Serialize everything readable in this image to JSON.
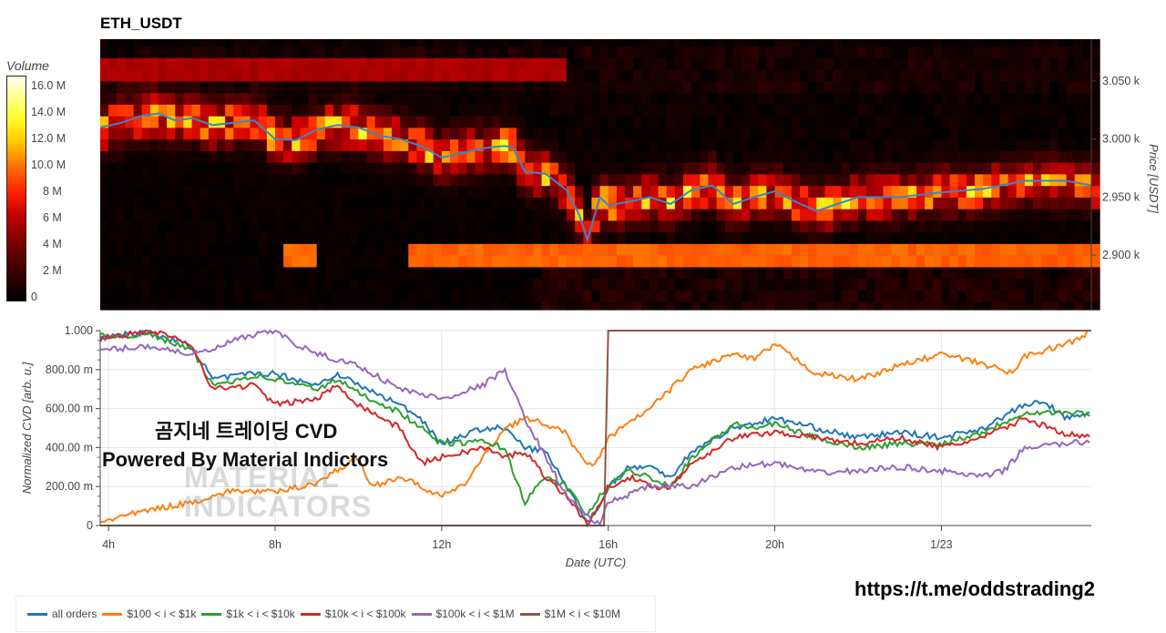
{
  "title": "ETH_USDT",
  "colorbar": {
    "title": "Volume",
    "ticks": [
      [
        "16.0 M",
        16
      ],
      [
        "14.0 M",
        14
      ],
      [
        "12.0 M",
        12
      ],
      [
        "10.0 M",
        10
      ],
      [
        "8 M",
        8
      ],
      [
        "6 M",
        6
      ],
      [
        "4 M",
        4
      ],
      [
        "2 M",
        2
      ],
      [
        "0",
        0
      ]
    ],
    "range": [
      0,
      16.5
    ]
  },
  "chart_data": [
    {
      "type": "heatmap",
      "title": "ETH_USDT",
      "ylabel": "Price [USDT]",
      "yticks": [
        [
          "3.050 k",
          3050
        ],
        [
          "3.000 k",
          3000
        ],
        [
          "2.950 k",
          2950
        ],
        [
          "2.900 k",
          2900
        ]
      ],
      "ylim": [
        2853,
        3086
      ],
      "xlim": [
        3.8,
        27.6
      ],
      "colorscale": "hot",
      "price_line_color": "#3a86c8",
      "price": [
        [
          3.8,
          3010
        ],
        [
          4.3,
          3014
        ],
        [
          4.8,
          3020
        ],
        [
          5.2,
          3022
        ],
        [
          5.6,
          3016
        ],
        [
          6,
          3018
        ],
        [
          6.5,
          3012
        ],
        [
          7,
          3014
        ],
        [
          7.5,
          3016
        ],
        [
          8,
          3000
        ],
        [
          8.5,
          2999
        ],
        [
          9,
          3008
        ],
        [
          9.5,
          3012
        ],
        [
          10,
          3010
        ],
        [
          10.5,
          3003
        ],
        [
          11,
          3000
        ],
        [
          11.5,
          2994
        ],
        [
          12,
          2984
        ],
        [
          12.5,
          2988
        ],
        [
          13,
          2992
        ],
        [
          13.5,
          2994
        ],
        [
          13.7,
          2993
        ],
        [
          14,
          2972
        ],
        [
          14.5,
          2970
        ],
        [
          15,
          2956
        ],
        [
          15.3,
          2935
        ],
        [
          15.5,
          2913
        ],
        [
          15.8,
          2950
        ],
        [
          16,
          2943
        ],
        [
          16.5,
          2946
        ],
        [
          17,
          2950
        ],
        [
          17.5,
          2944
        ],
        [
          18,
          2956
        ],
        [
          18.5,
          2960
        ],
        [
          19,
          2944
        ],
        [
          19.5,
          2950
        ],
        [
          20,
          2955
        ],
        [
          20.5,
          2946
        ],
        [
          21,
          2938
        ],
        [
          21.5,
          2944
        ],
        [
          22,
          2950
        ],
        [
          23,
          2950
        ],
        [
          24,
          2954
        ],
        [
          25,
          2957
        ],
        [
          26,
          2964
        ],
        [
          27,
          2964
        ],
        [
          27.6,
          2960
        ]
      ],
      "walls": [
        {
          "price": 3060,
          "from": 3.8,
          "to": 14.8,
          "volume": 5.5
        },
        {
          "price": 2900,
          "from": 8.1,
          "to": 8.9,
          "volume": 9.5
        },
        {
          "price": 2900,
          "from": 11.0,
          "to": 27.6,
          "volume": 9.5
        }
      ]
    },
    {
      "type": "line",
      "xlabel": "Date (UTC)",
      "ylabel": "Normalized CVD [arb. u.]",
      "ylim": [
        0,
        1
      ],
      "xlim": [
        3.8,
        27.6
      ],
      "xticks": [
        [
          "4h",
          4
        ],
        [
          "8h",
          8
        ],
        [
          "12h",
          12
        ],
        [
          "16h",
          16
        ],
        [
          "20h",
          20
        ],
        [
          "1/23",
          24
        ]
      ],
      "yticks": [
        [
          "1.000",
          1
        ],
        [
          "800.00 m",
          0.8
        ],
        [
          "600.00 m",
          0.6
        ],
        [
          "400.00 m",
          0.4
        ],
        [
          "200.00 m",
          0.2
        ],
        [
          "0",
          0
        ]
      ],
      "grid": true,
      "legend": "bottom",
      "series": [
        {
          "name": "all orders",
          "color": "#1f77b4",
          "points": [
            [
              3.8,
              0.97
            ],
            [
              5,
              0.99
            ],
            [
              6,
              0.92
            ],
            [
              6.5,
              0.75
            ],
            [
              7.5,
              0.78
            ],
            [
              8,
              0.78
            ],
            [
              9,
              0.72
            ],
            [
              9.5,
              0.78
            ],
            [
              10,
              0.72
            ],
            [
              11,
              0.62
            ],
            [
              11.5,
              0.55
            ],
            [
              12,
              0.42
            ],
            [
              13,
              0.5
            ],
            [
              13.5,
              0.5
            ],
            [
              14,
              0.4
            ],
            [
              14.5,
              0.38
            ],
            [
              15,
              0.2
            ],
            [
              15.5,
              0.02
            ],
            [
              15.8,
              0.1
            ],
            [
              16,
              0.2
            ],
            [
              16.5,
              0.3
            ],
            [
              17,
              0.3
            ],
            [
              17.5,
              0.25
            ],
            [
              18,
              0.38
            ],
            [
              19,
              0.5
            ],
            [
              20,
              0.55
            ],
            [
              21,
              0.5
            ],
            [
              22,
              0.45
            ],
            [
              23,
              0.48
            ],
            [
              24,
              0.45
            ],
            [
              25,
              0.5
            ],
            [
              26,
              0.62
            ],
            [
              26.5,
              0.63
            ],
            [
              27,
              0.55
            ],
            [
              27.6,
              0.57
            ]
          ]
        },
        {
          "name": "$100 < i < $1k",
          "color": "#ff7f0e",
          "points": [
            [
              3.8,
              0.02
            ],
            [
              5,
              0.08
            ],
            [
              6,
              0.12
            ],
            [
              7,
              0.18
            ],
            [
              8,
              0.17
            ],
            [
              9,
              0.22
            ],
            [
              10,
              0.35
            ],
            [
              10.3,
              0.2
            ],
            [
              11,
              0.25
            ],
            [
              11.5,
              0.2
            ],
            [
              12,
              0.15
            ],
            [
              12.5,
              0.2
            ],
            [
              13,
              0.35
            ],
            [
              13.5,
              0.5
            ],
            [
              14,
              0.55
            ],
            [
              14.5,
              0.52
            ],
            [
              15,
              0.47
            ],
            [
              15.5,
              0.3
            ],
            [
              15.8,
              0.35
            ],
            [
              16,
              0.45
            ],
            [
              17,
              0.6
            ],
            [
              18,
              0.8
            ],
            [
              19,
              0.88
            ],
            [
              19.5,
              0.85
            ],
            [
              20,
              0.93
            ],
            [
              21,
              0.78
            ],
            [
              22,
              0.75
            ],
            [
              23,
              0.82
            ],
            [
              24,
              0.88
            ],
            [
              25,
              0.83
            ],
            [
              25.7,
              0.78
            ],
            [
              26,
              0.87
            ],
            [
              27,
              0.93
            ],
            [
              27.6,
              1.0
            ]
          ]
        },
        {
          "name": "$1k < i < $10k",
          "color": "#2ca02c",
          "points": [
            [
              3.8,
              0.97
            ],
            [
              5,
              0.98
            ],
            [
              6,
              0.9
            ],
            [
              6.5,
              0.72
            ],
            [
              7.5,
              0.77
            ],
            [
              8,
              0.75
            ],
            [
              9,
              0.7
            ],
            [
              9.5,
              0.75
            ],
            [
              10,
              0.68
            ],
            [
              11,
              0.58
            ],
            [
              12,
              0.42
            ],
            [
              13,
              0.43
            ],
            [
              13.5,
              0.4
            ],
            [
              14,
              0.12
            ],
            [
              14.5,
              0.25
            ],
            [
              15,
              0.2
            ],
            [
              15.5,
              0.05
            ],
            [
              15.8,
              0.15
            ],
            [
              16,
              0.2
            ],
            [
              16.5,
              0.28
            ],
            [
              17,
              0.25
            ],
            [
              17.5,
              0.2
            ],
            [
              18,
              0.35
            ],
            [
              19,
              0.52
            ],
            [
              19.5,
              0.5
            ],
            [
              20,
              0.52
            ],
            [
              21,
              0.45
            ],
            [
              22,
              0.4
            ],
            [
              23,
              0.42
            ],
            [
              24,
              0.42
            ],
            [
              25,
              0.48
            ],
            [
              26,
              0.58
            ],
            [
              27,
              0.58
            ],
            [
              27.6,
              0.57
            ]
          ]
        },
        {
          "name": "$10k < i < $100k",
          "color": "#d62728",
          "points": [
            [
              3.8,
              0.96
            ],
            [
              5,
              1.0
            ],
            [
              6,
              0.93
            ],
            [
              6.5,
              0.7
            ],
            [
              7.5,
              0.72
            ],
            [
              8,
              0.62
            ],
            [
              9,
              0.65
            ],
            [
              9.5,
              0.72
            ],
            [
              10,
              0.62
            ],
            [
              11,
              0.5
            ],
            [
              11.5,
              0.32
            ],
            [
              12,
              0.35
            ],
            [
              13,
              0.4
            ],
            [
              13.5,
              0.35
            ],
            [
              14,
              0.38
            ],
            [
              14.5,
              0.25
            ],
            [
              15,
              0.15
            ],
            [
              15.5,
              0.01
            ],
            [
              15.8,
              0.1
            ],
            [
              16,
              0.2
            ],
            [
              16.5,
              0.25
            ],
            [
              17,
              0.2
            ],
            [
              17.5,
              0.2
            ],
            [
              18,
              0.32
            ],
            [
              19,
              0.45
            ],
            [
              20,
              0.48
            ],
            [
              21,
              0.45
            ],
            [
              22,
              0.42
            ],
            [
              23,
              0.45
            ],
            [
              24,
              0.4
            ],
            [
              25,
              0.45
            ],
            [
              26,
              0.55
            ],
            [
              27,
              0.47
            ],
            [
              27.6,
              0.45
            ]
          ]
        },
        {
          "name": "$100k < i < $1M",
          "color": "#9467bd",
          "points": [
            [
              3.8,
              0.9
            ],
            [
              5,
              0.92
            ],
            [
              6,
              0.88
            ],
            [
              6.5,
              0.9
            ],
            [
              7,
              0.95
            ],
            [
              8,
              1.0
            ],
            [
              8.5,
              0.93
            ],
            [
              9,
              0.88
            ],
            [
              10,
              0.82
            ],
            [
              11,
              0.7
            ],
            [
              12,
              0.65
            ],
            [
              13,
              0.72
            ],
            [
              13.5,
              0.8
            ],
            [
              14,
              0.55
            ],
            [
              14.5,
              0.35
            ],
            [
              15,
              0.15
            ],
            [
              15.5,
              0.05
            ],
            [
              15.8,
              0.0
            ],
            [
              16,
              0.12
            ],
            [
              17,
              0.2
            ],
            [
              18,
              0.2
            ],
            [
              19,
              0.3
            ],
            [
              20,
              0.32
            ],
            [
              21,
              0.27
            ],
            [
              22,
              0.28
            ],
            [
              23,
              0.3
            ],
            [
              24,
              0.28
            ],
            [
              25,
              0.25
            ],
            [
              25.5,
              0.28
            ],
            [
              26,
              0.4
            ],
            [
              27,
              0.42
            ],
            [
              27.6,
              0.43
            ]
          ]
        },
        {
          "name": "$1M < i < $10M",
          "color": "#8c564b",
          "points": [
            [
              3.8,
              0
            ],
            [
              15.9,
              0
            ],
            [
              16.0,
              1.0
            ],
            [
              27.6,
              1.0
            ]
          ]
        }
      ]
    }
  ],
  "watermark": {
    "line1": "곰지네 트레이딩 CVD",
    "line2": "Powered By Material Indictors",
    "logo": "MATERIAL INDICATORS"
  },
  "link": "https://t.me/oddstrading2"
}
